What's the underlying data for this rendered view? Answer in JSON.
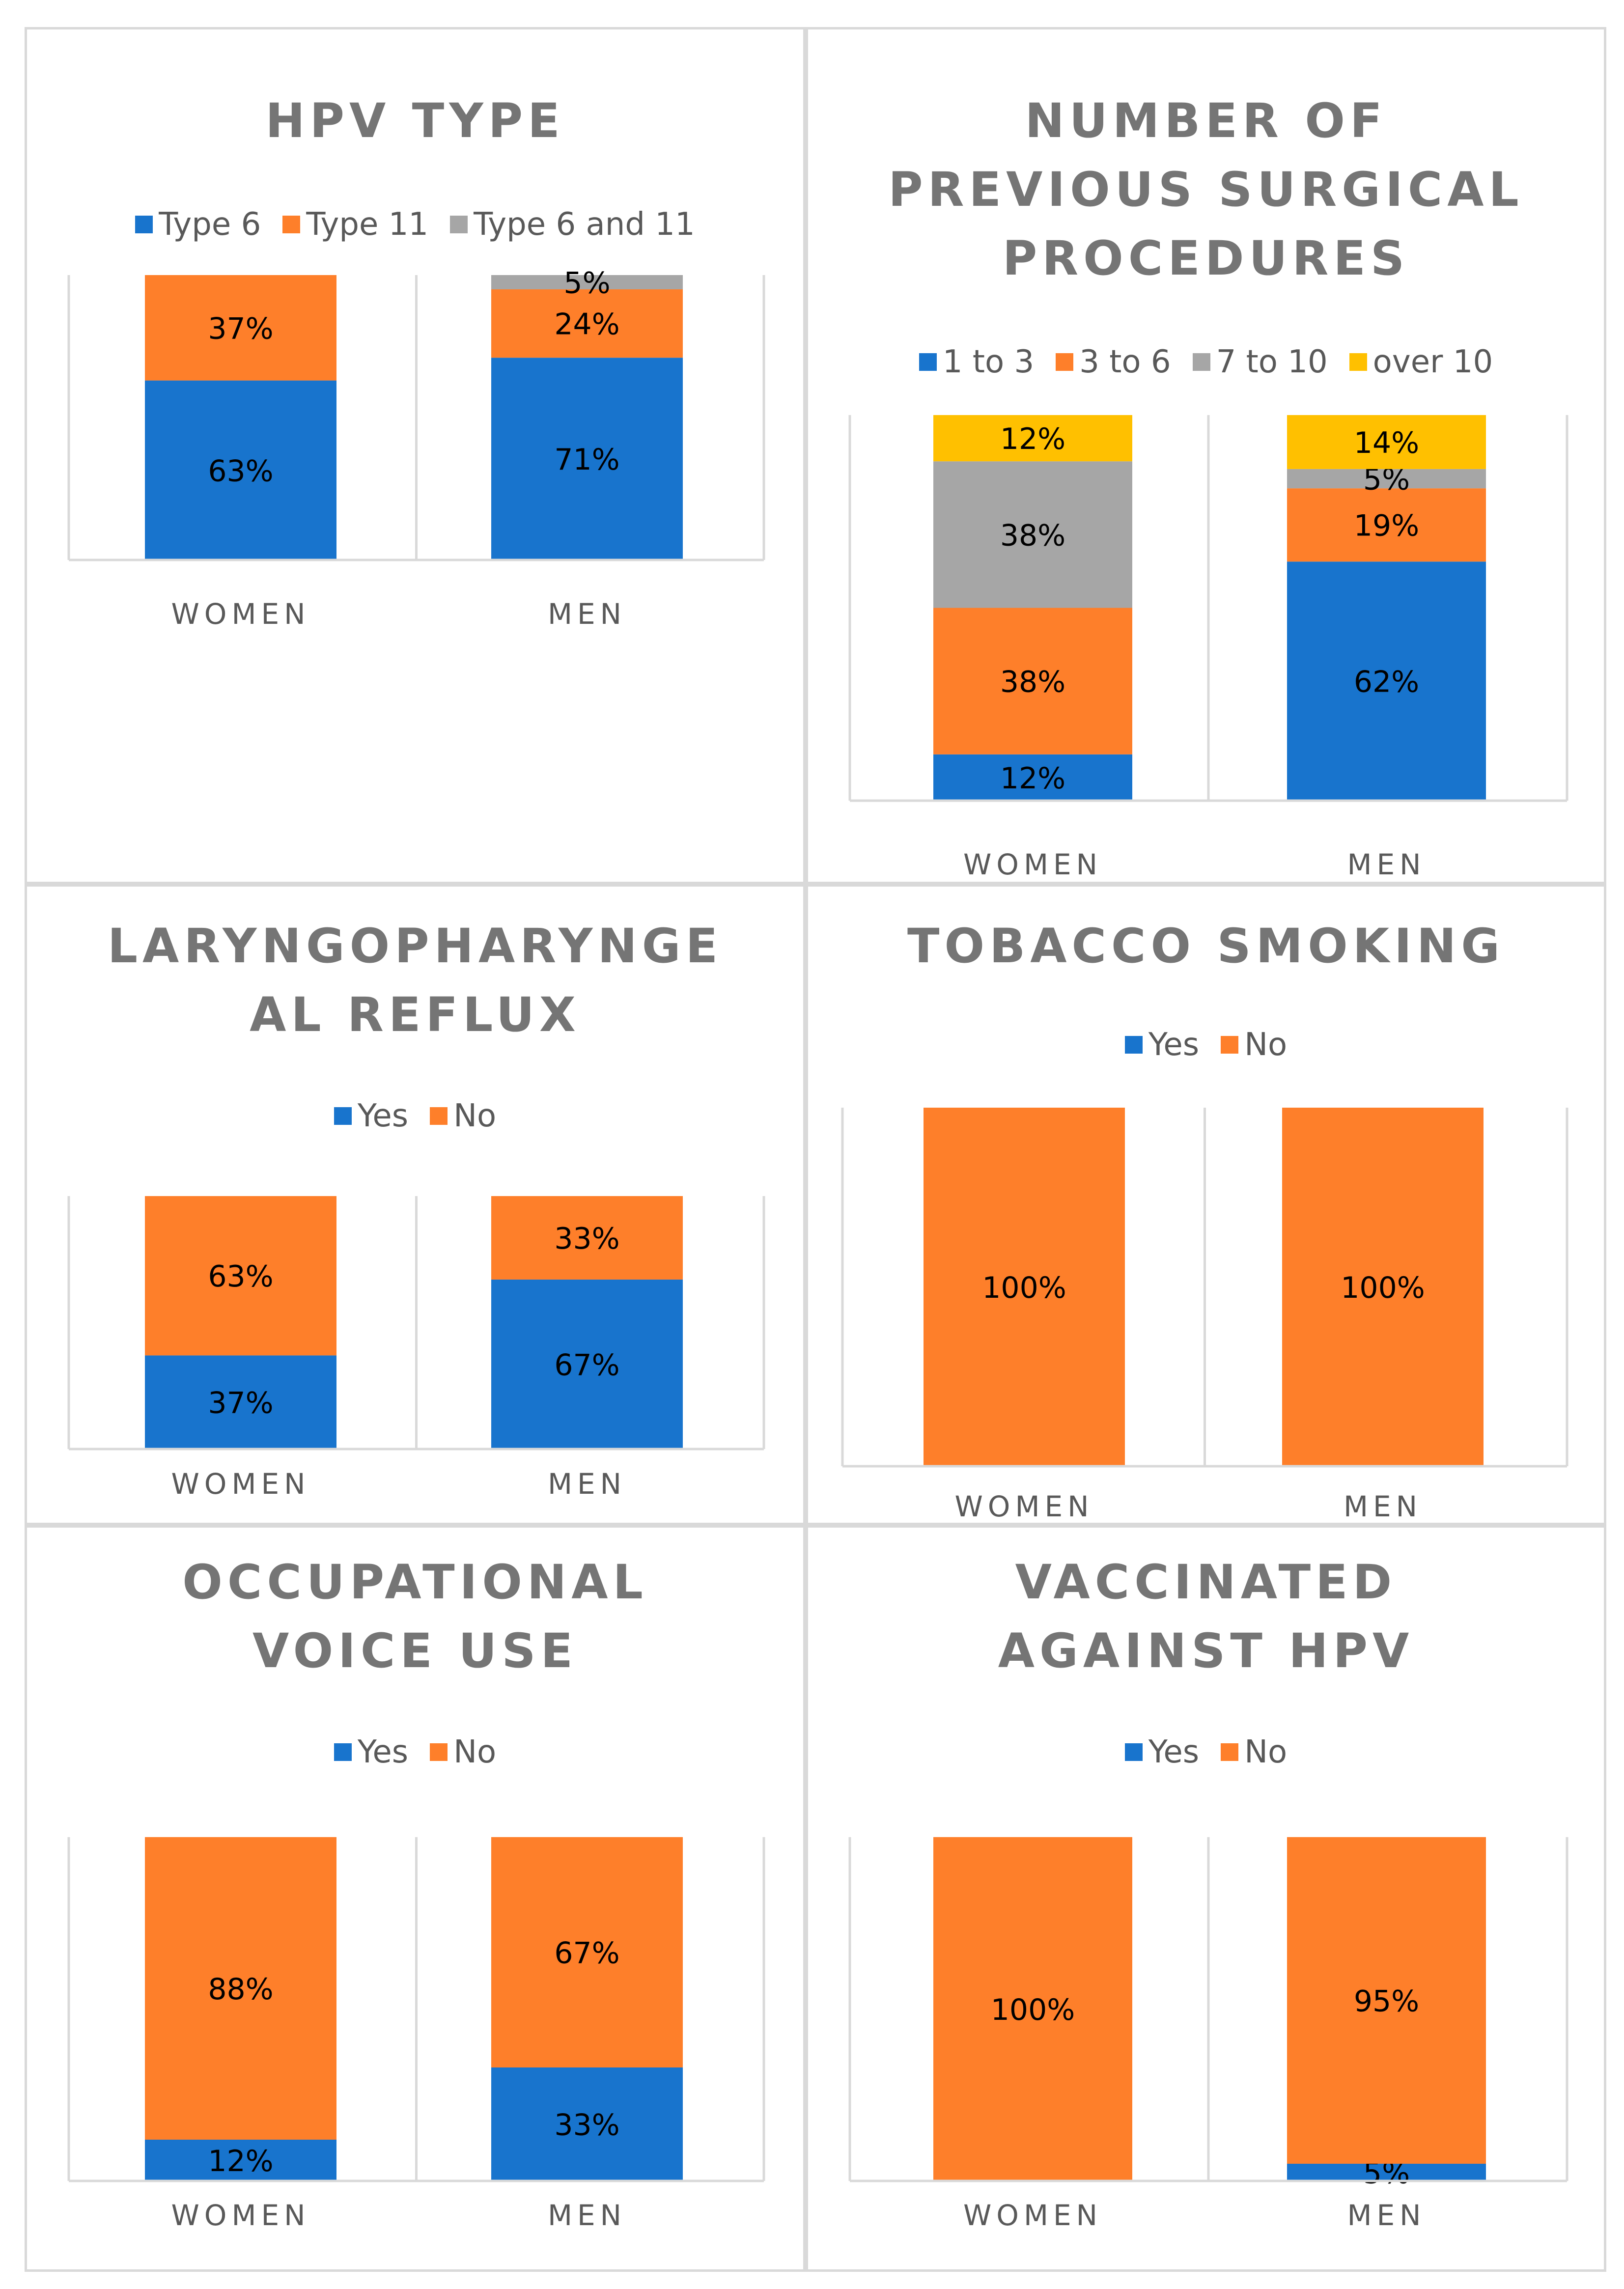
{
  "chart_data": [
    {
      "type": "bar",
      "stacked": true,
      "title": [
        "HPV TYPE"
      ],
      "categories": [
        "WOMEN",
        "MEN"
      ],
      "series": [
        {
          "name": "Type 6",
          "color": "#1874cd",
          "values": [
            63,
            71
          ]
        },
        {
          "name": "Type 11",
          "color": "#fe7f2a",
          "values": [
            37,
            24
          ]
        },
        {
          "name": "Type 6 and 11",
          "color": "#a6a6a6",
          "values": [
            0,
            5
          ]
        }
      ],
      "ylim": [
        0,
        100
      ],
      "unit": "%"
    },
    {
      "type": "bar",
      "stacked": true,
      "title": [
        "NUMBER OF",
        "PREVIOUS SURGICAL",
        "PROCEDURES"
      ],
      "categories": [
        "WOMEN",
        "MEN"
      ],
      "series": [
        {
          "name": "1 to 3",
          "color": "#1874cd",
          "values": [
            12,
            62
          ]
        },
        {
          "name": "3 to 6",
          "color": "#fe7f2a",
          "values": [
            38,
            19
          ]
        },
        {
          "name": "7 to 10",
          "color": "#a6a6a6",
          "values": [
            38,
            5
          ]
        },
        {
          "name": "over 10",
          "color": "#ffc000",
          "values": [
            12,
            14
          ]
        }
      ],
      "ylim": [
        0,
        100
      ],
      "unit": "%"
    },
    {
      "type": "bar",
      "stacked": true,
      "title": [
        "LARYNGOPHARYNGE",
        "AL REFLUX"
      ],
      "categories": [
        "WOMEN",
        "MEN"
      ],
      "series": [
        {
          "name": "Yes",
          "color": "#1874cd",
          "values": [
            37,
            67
          ]
        },
        {
          "name": "No",
          "color": "#fe7f2a",
          "values": [
            63,
            33
          ]
        }
      ],
      "ylim": [
        0,
        100
      ],
      "unit": "%"
    },
    {
      "type": "bar",
      "stacked": true,
      "title": [
        "TOBACCO SMOKING"
      ],
      "categories": [
        "WOMEN",
        "MEN"
      ],
      "series": [
        {
          "name": "Yes",
          "color": "#1874cd",
          "values": [
            0,
            0
          ]
        },
        {
          "name": "No",
          "color": "#fe7f2a",
          "values": [
            100,
            100
          ]
        }
      ],
      "ylim": [
        0,
        100
      ],
      "unit": "%"
    },
    {
      "type": "bar",
      "stacked": true,
      "title": [
        "OCCUPATIONAL",
        "VOICE USE"
      ],
      "categories": [
        "WOMEN",
        "MEN"
      ],
      "series": [
        {
          "name": "Yes",
          "color": "#1874cd",
          "values": [
            12,
            33
          ]
        },
        {
          "name": "No",
          "color": "#fe7f2a",
          "values": [
            88,
            67
          ]
        }
      ],
      "ylim": [
        0,
        100
      ],
      "unit": "%"
    },
    {
      "type": "bar",
      "stacked": true,
      "title": [
        "VACCINATED",
        "AGAINST HPV"
      ],
      "categories": [
        "WOMEN",
        "MEN"
      ],
      "series": [
        {
          "name": "Yes",
          "color": "#1874cd",
          "values": [
            0,
            5
          ]
        },
        {
          "name": "No",
          "color": "#fe7f2a",
          "values": [
            100,
            95
          ]
        }
      ],
      "ylim": [
        0,
        100
      ],
      "unit": "%"
    }
  ]
}
